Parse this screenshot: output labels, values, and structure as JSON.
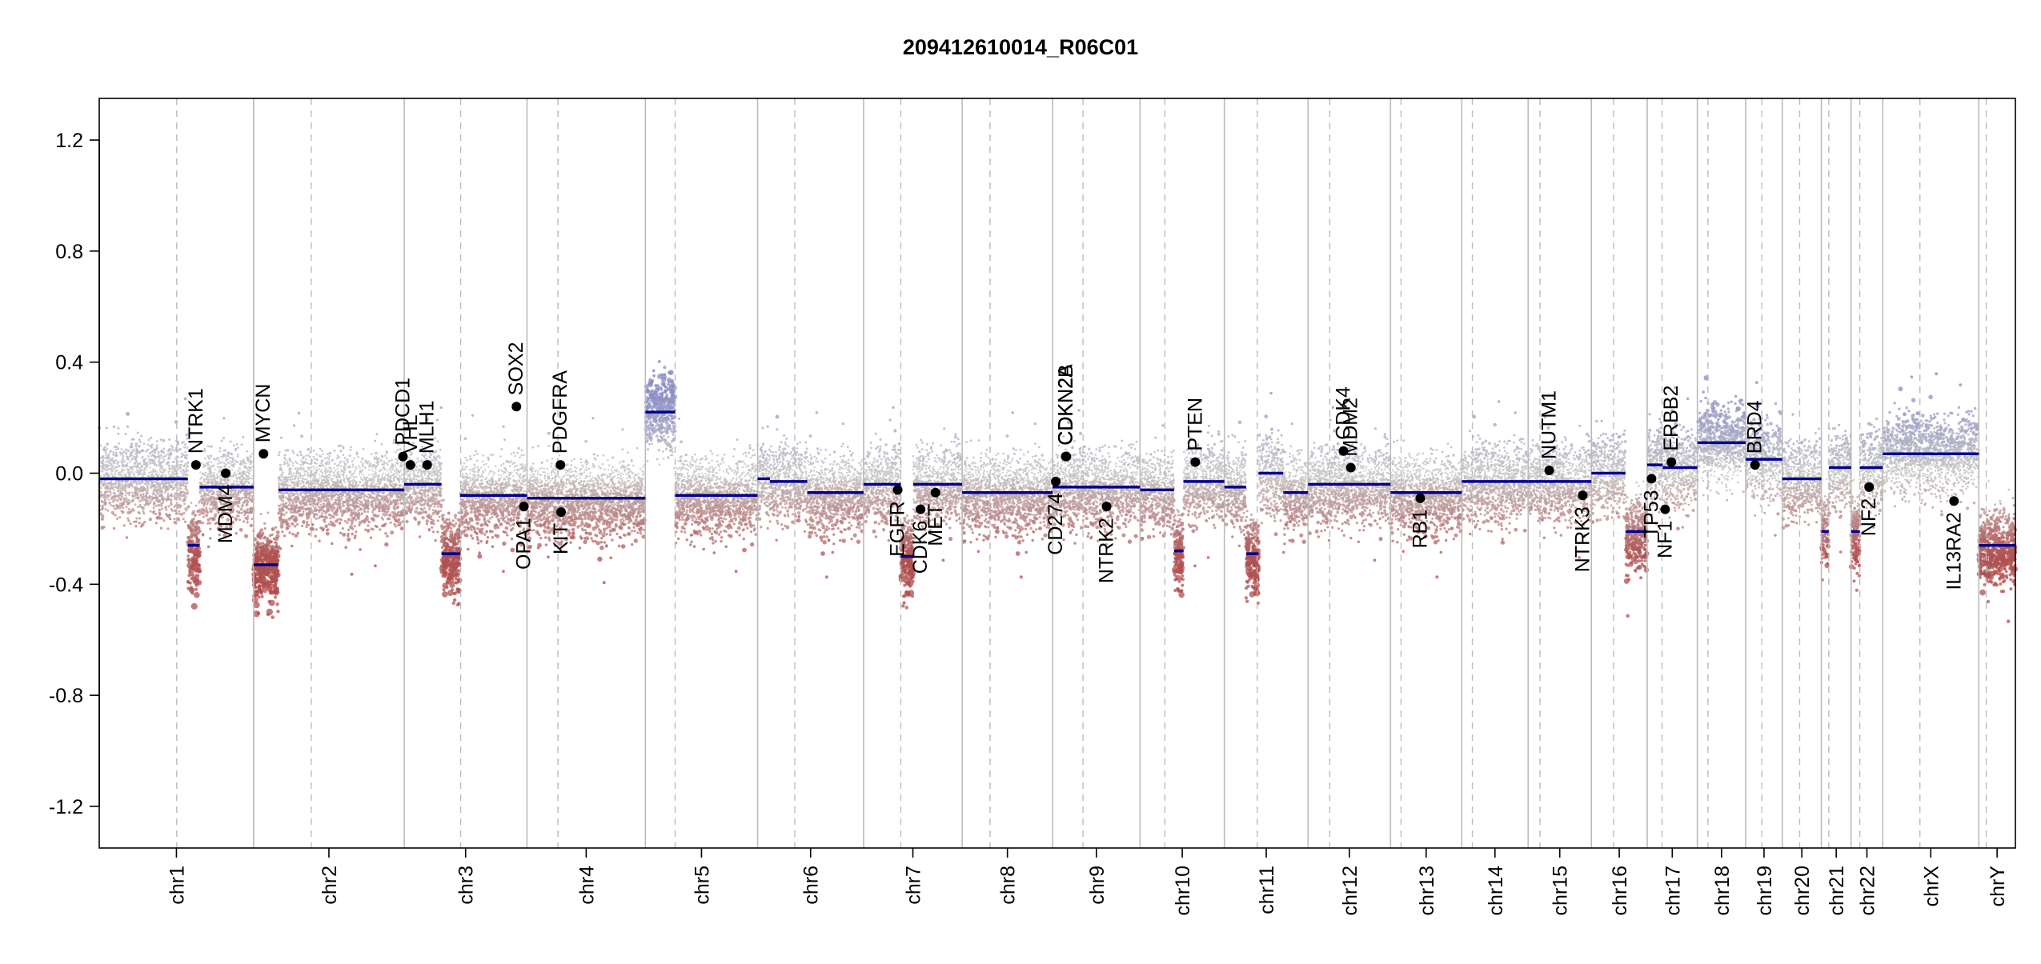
{
  "chart_data": {
    "type": "scatter",
    "title": "209412610014_R06C01",
    "xlabel": "",
    "ylabel": "",
    "ylim": [
      -1.35,
      1.35
    ],
    "y_ticks": [
      -1.2,
      -0.8,
      -0.4,
      0.0,
      0.4,
      0.8,
      1.2
    ],
    "y_tick_labels": [
      "-1.2",
      "-0.8",
      "-0.4",
      "0.0",
      "0.4",
      "0.8",
      "1.2"
    ],
    "grid": false,
    "legend": "none",
    "colors": {
      "segment": "#00008b",
      "gene_marker": "#000000",
      "gain": "#8a8ac4",
      "neutral": "#c4c4c4",
      "loss": "#b05050",
      "chrom_boundary": "#bbbbbb",
      "centromere": "#bbbbbb"
    },
    "chromosomes": [
      {
        "name": "chr1",
        "size": 249
      },
      {
        "name": "chr2",
        "size": 243
      },
      {
        "name": "chr3",
        "size": 198
      },
      {
        "name": "chr4",
        "size": 191
      },
      {
        "name": "chr5",
        "size": 181
      },
      {
        "name": "chr6",
        "size": 171
      },
      {
        "name": "chr7",
        "size": 159
      },
      {
        "name": "chr8",
        "size": 146
      },
      {
        "name": "chr9",
        "size": 141
      },
      {
        "name": "chr10",
        "size": 136
      },
      {
        "name": "chr11",
        "size": 135
      },
      {
        "name": "chr12",
        "size": 133
      },
      {
        "name": "chr13",
        "size": 115
      },
      {
        "name": "chr14",
        "size": 107
      },
      {
        "name": "chr15",
        "size": 102
      },
      {
        "name": "chr16",
        "size": 90
      },
      {
        "name": "chr17",
        "size": 81
      },
      {
        "name": "chr18",
        "size": 78
      },
      {
        "name": "chr19",
        "size": 59
      },
      {
        "name": "chr20",
        "size": 63
      },
      {
        "name": "chr21",
        "size": 48
      },
      {
        "name": "chr22",
        "size": 51
      },
      {
        "name": "chrX",
        "size": 155
      },
      {
        "name": "chrY",
        "size": 59
      }
    ],
    "centromeres": [
      125,
      93,
      91,
      50,
      48,
      60,
      60,
      45,
      49,
      40,
      53,
      35,
      17,
      17,
      19,
      36,
      24,
      17,
      26,
      28,
      12,
      14,
      60,
      12
    ],
    "segments": [
      {
        "chr": "chr1",
        "start": 0,
        "end": 143,
        "value": -0.02
      },
      {
        "chr": "chr1",
        "start": 143,
        "end": 162,
        "value": -0.26
      },
      {
        "chr": "chr1",
        "start": 162,
        "end": 249,
        "value": -0.05
      },
      {
        "chr": "chr2",
        "start": 0,
        "end": 40,
        "value": -0.33
      },
      {
        "chr": "chr2",
        "start": 40,
        "end": 243,
        "value": -0.06
      },
      {
        "chr": "chr3",
        "start": 0,
        "end": 60,
        "value": -0.04
      },
      {
        "chr": "chr3",
        "start": 60,
        "end": 90,
        "value": -0.29
      },
      {
        "chr": "chr3",
        "start": 90,
        "end": 198,
        "value": -0.08
      },
      {
        "chr": "chr4",
        "start": 0,
        "end": 191,
        "value": -0.09
      },
      {
        "chr": "chr5",
        "start": 0,
        "end": 48,
        "value": 0.22
      },
      {
        "chr": "chr5",
        "start": 48,
        "end": 181,
        "value": -0.08
      },
      {
        "chr": "chr6",
        "start": 0,
        "end": 20,
        "value": -0.02
      },
      {
        "chr": "chr6",
        "start": 20,
        "end": 80,
        "value": -0.03
      },
      {
        "chr": "chr6",
        "start": 80,
        "end": 171,
        "value": -0.07
      },
      {
        "chr": "chr7",
        "start": 0,
        "end": 60,
        "value": -0.04
      },
      {
        "chr": "chr7",
        "start": 60,
        "end": 80,
        "value": -0.3
      },
      {
        "chr": "chr7",
        "start": 80,
        "end": 159,
        "value": -0.04
      },
      {
        "chr": "chr8",
        "start": 0,
        "end": 146,
        "value": -0.07
      },
      {
        "chr": "chr9",
        "start": 0,
        "end": 141,
        "value": -0.05
      },
      {
        "chr": "chr10",
        "start": 0,
        "end": 55,
        "value": -0.06
      },
      {
        "chr": "chr10",
        "start": 55,
        "end": 70,
        "value": -0.28
      },
      {
        "chr": "chr10",
        "start": 70,
        "end": 136,
        "value": -0.03
      },
      {
        "chr": "chr11",
        "start": 0,
        "end": 35,
        "value": -0.05
      },
      {
        "chr": "chr11",
        "start": 35,
        "end": 55,
        "value": -0.29
      },
      {
        "chr": "chr11",
        "start": 55,
        "end": 95,
        "value": 0.0
      },
      {
        "chr": "chr11",
        "start": 95,
        "end": 135,
        "value": -0.07
      },
      {
        "chr": "chr12",
        "start": 0,
        "end": 133,
        "value": -0.04
      },
      {
        "chr": "chr13",
        "start": 0,
        "end": 115,
        "value": -0.07
      },
      {
        "chr": "chr14",
        "start": 0,
        "end": 107,
        "value": -0.03
      },
      {
        "chr": "chr15",
        "start": 0,
        "end": 102,
        "value": -0.03
      },
      {
        "chr": "chr16",
        "start": 0,
        "end": 55,
        "value": 0.0
      },
      {
        "chr": "chr16",
        "start": 55,
        "end": 90,
        "value": -0.21
      },
      {
        "chr": "chr17",
        "start": 0,
        "end": 25,
        "value": 0.03
      },
      {
        "chr": "chr17",
        "start": 25,
        "end": 81,
        "value": 0.02
      },
      {
        "chr": "chr18",
        "start": 0,
        "end": 18,
        "value": 0.11
      },
      {
        "chr": "chr18",
        "start": 18,
        "end": 78,
        "value": 0.11
      },
      {
        "chr": "chr19",
        "start": 0,
        "end": 59,
        "value": 0.05
      },
      {
        "chr": "chr20",
        "start": 0,
        "end": 63,
        "value": -0.02
      },
      {
        "chr": "chr21",
        "start": 0,
        "end": 12,
        "value": -0.21
      },
      {
        "chr": "chr21",
        "start": 12,
        "end": 48,
        "value": 0.02
      },
      {
        "chr": "chr22",
        "start": 0,
        "end": 14,
        "value": -0.21
      },
      {
        "chr": "chr22",
        "start": 14,
        "end": 51,
        "value": 0.02
      },
      {
        "chr": "chrX",
        "start": 0,
        "end": 155,
        "value": 0.07
      },
      {
        "chr": "chrY",
        "start": 0,
        "end": 59,
        "value": -0.26
      }
    ],
    "genes": [
      {
        "name": "NTRK1",
        "chr": "chr1",
        "pos": 156,
        "value": 0.03,
        "label": "up"
      },
      {
        "name": "MDM4",
        "chr": "chr1",
        "pos": 204,
        "value": 0.0,
        "label": "down"
      },
      {
        "name": "MYCN",
        "chr": "chr2",
        "pos": 16,
        "value": 0.07,
        "label": "up"
      },
      {
        "name": "PDCD1",
        "chr": "chr2",
        "pos": 241,
        "value": 0.06,
        "label": "up"
      },
      {
        "name": "VHL",
        "chr": "chr3",
        "pos": 10,
        "value": 0.03,
        "label": "up"
      },
      {
        "name": "MLH1",
        "chr": "chr3",
        "pos": 37,
        "value": 0.03,
        "label": "up"
      },
      {
        "name": "SOX2",
        "chr": "chr3",
        "pos": 181,
        "value": 0.24,
        "label": "up"
      },
      {
        "name": "OPA1",
        "chr": "chr3",
        "pos": 193,
        "value": -0.12,
        "label": "down"
      },
      {
        "name": "PDGFRA",
        "chr": "chr4",
        "pos": 54,
        "value": 0.03,
        "label": "up"
      },
      {
        "name": "KIT",
        "chr": "chr4",
        "pos": 55,
        "value": -0.14,
        "label": "down"
      },
      {
        "name": "EGFR",
        "chr": "chr7",
        "pos": 55,
        "value": -0.06,
        "label": "down"
      },
      {
        "name": "CDK6",
        "chr": "chr7",
        "pos": 92,
        "value": -0.13,
        "label": "down"
      },
      {
        "name": "MET",
        "chr": "chr7",
        "pos": 116,
        "value": -0.07,
        "label": "down"
      },
      {
        "name": "CD274",
        "chr": "chr9",
        "pos": 5,
        "value": -0.03,
        "label": "down"
      },
      {
        "name": "CDKN2A",
        "chr": "chr9",
        "pos": 21,
        "value": 0.06,
        "label": "up"
      },
      {
        "name": "CDKN2B",
        "chr": "chr9",
        "pos": 22,
        "value": 0.06,
        "label": "up"
      },
      {
        "name": "NTRK2",
        "chr": "chr9",
        "pos": 87,
        "value": -0.12,
        "label": "down"
      },
      {
        "name": "PTEN",
        "chr": "chr10",
        "pos": 89,
        "value": 0.04,
        "label": "up"
      },
      {
        "name": "CDK4",
        "chr": "chr12",
        "pos": 57,
        "value": 0.08,
        "label": "up"
      },
      {
        "name": "MDM2",
        "chr": "chr12",
        "pos": 69,
        "value": 0.02,
        "label": "up"
      },
      {
        "name": "RB1",
        "chr": "chr13",
        "pos": 48,
        "value": -0.09,
        "label": "down"
      },
      {
        "name": "NUTM1",
        "chr": "chr15",
        "pos": 34,
        "value": 0.01,
        "label": "up"
      },
      {
        "name": "NTRK3",
        "chr": "chr15",
        "pos": 88,
        "value": -0.08,
        "label": "down"
      },
      {
        "name": "TP53",
        "chr": "chr17",
        "pos": 7,
        "value": -0.02,
        "label": "down"
      },
      {
        "name": "NF1",
        "chr": "chr17",
        "pos": 29,
        "value": -0.13,
        "label": "down"
      },
      {
        "name": "ERBB2",
        "chr": "chr17",
        "pos": 39,
        "value": 0.04,
        "label": "up"
      },
      {
        "name": "BRD4",
        "chr": "chr19",
        "pos": 15,
        "value": 0.03,
        "label": "up"
      },
      {
        "name": "NF2",
        "chr": "chr22",
        "pos": 29,
        "value": -0.05,
        "label": "down"
      },
      {
        "name": "IL13RA2",
        "chr": "chrX",
        "pos": 115,
        "value": -0.1,
        "label": "down"
      }
    ]
  }
}
